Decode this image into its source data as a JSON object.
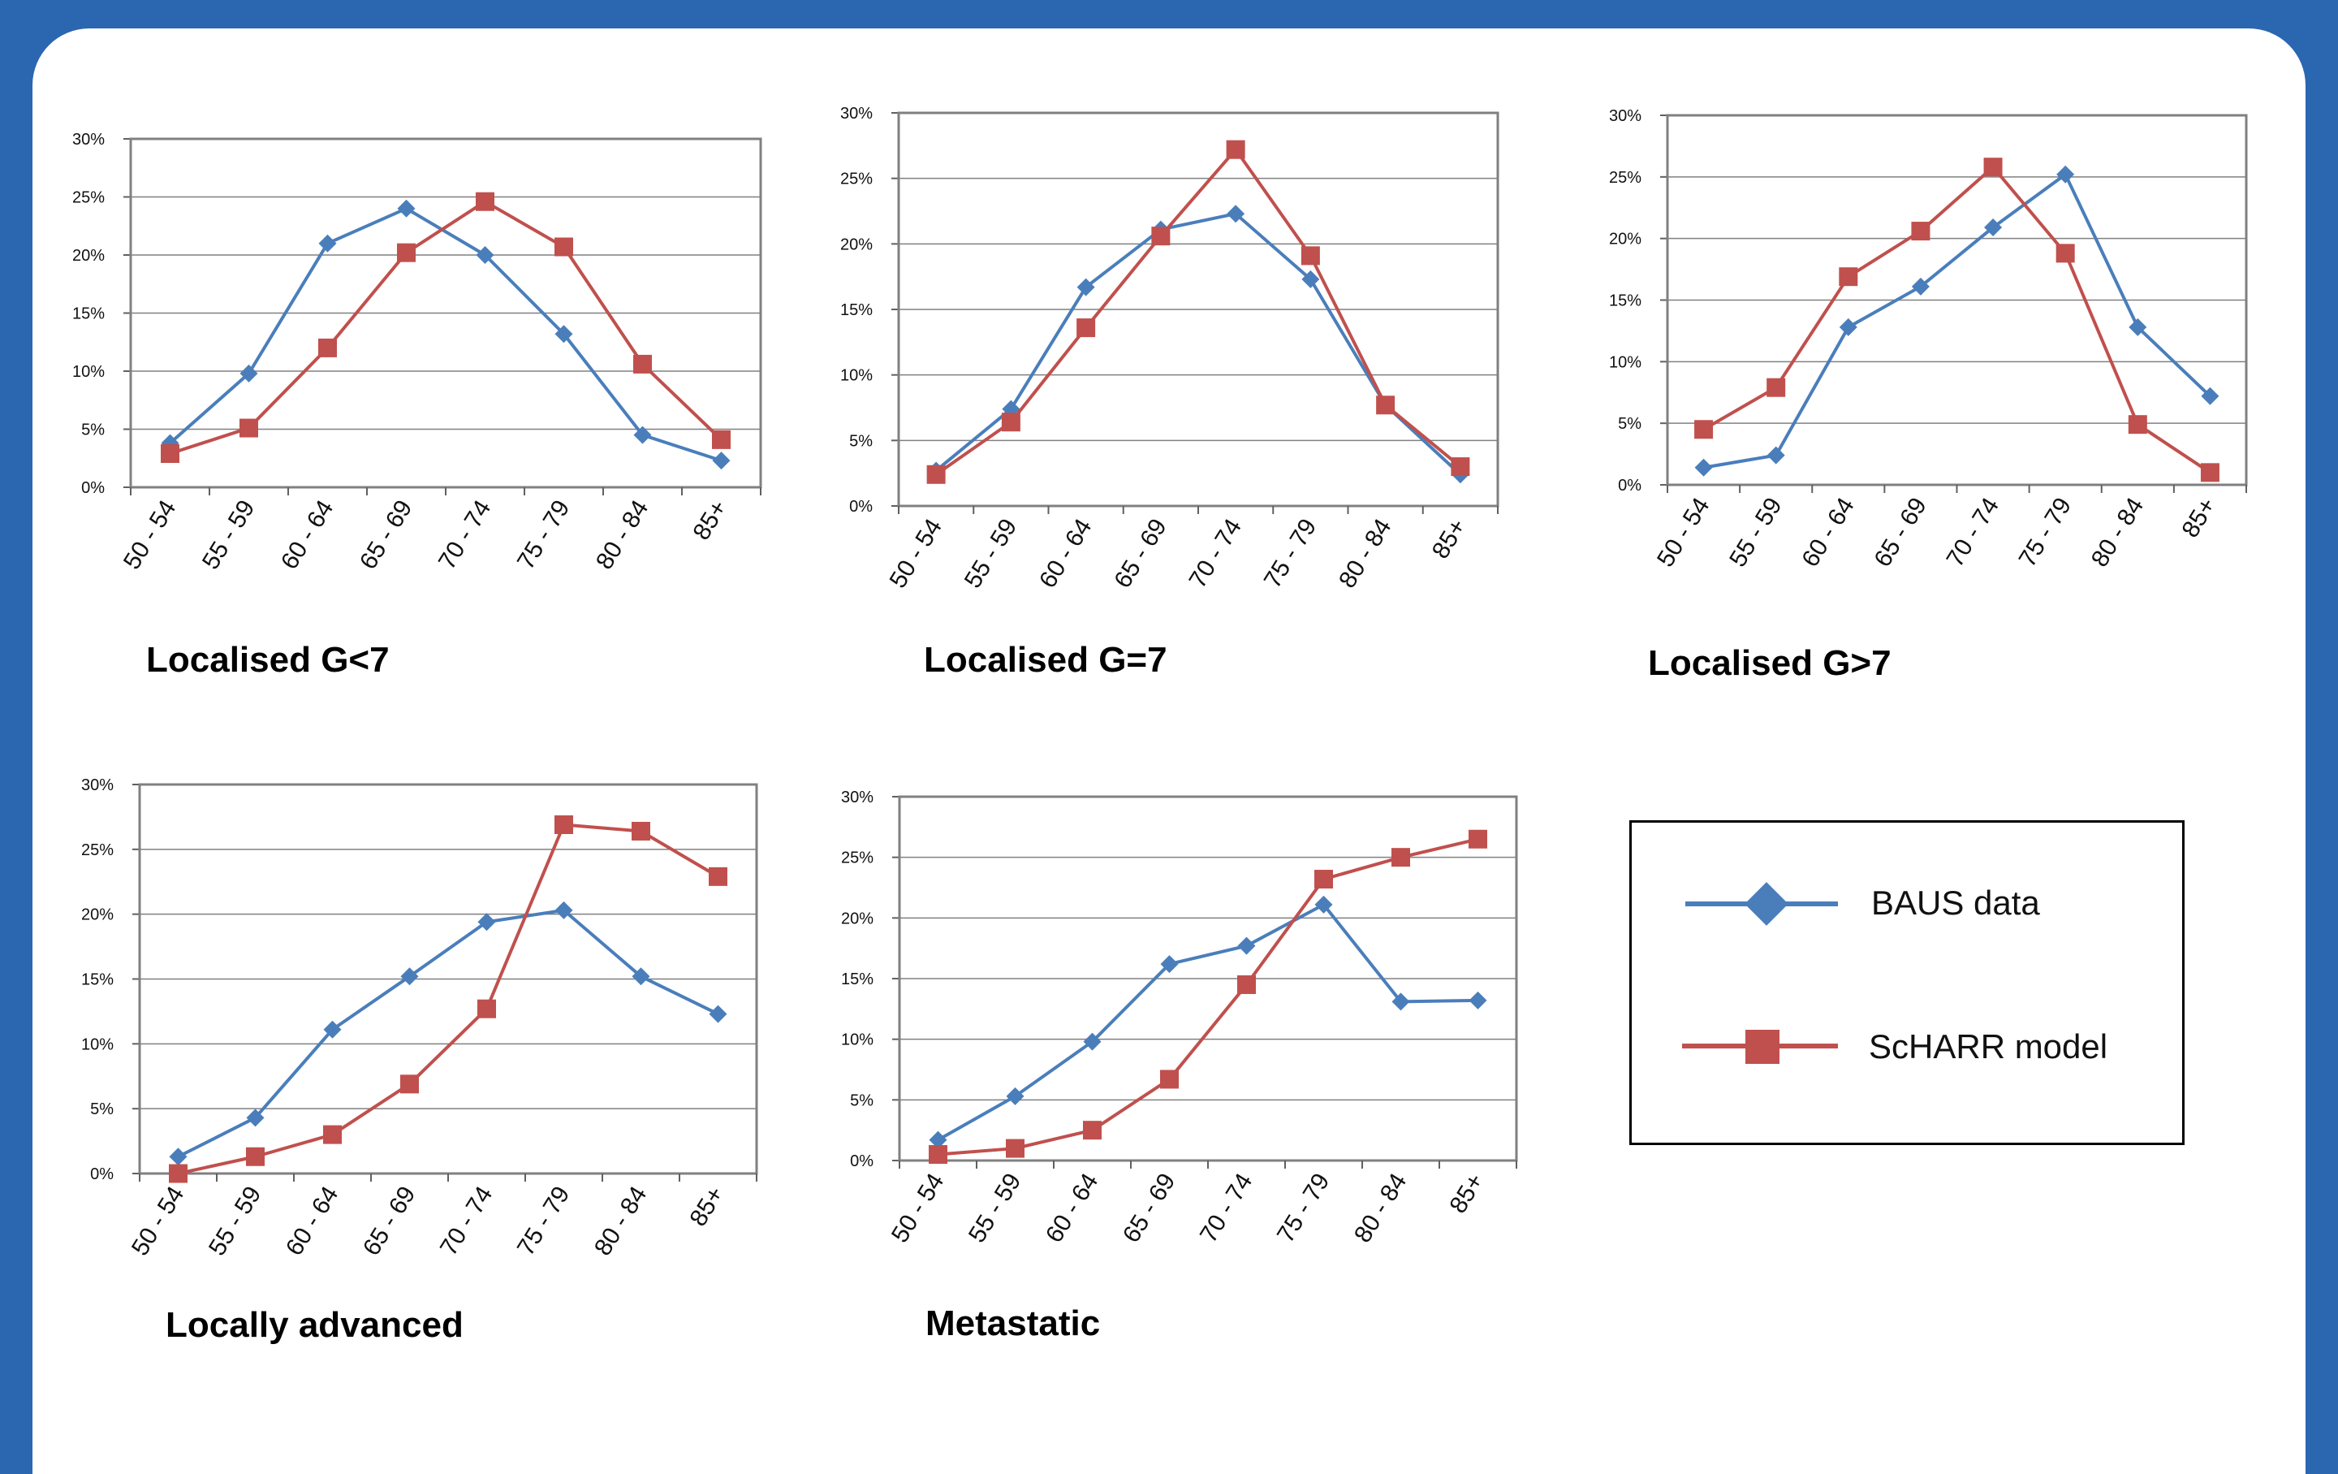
{
  "colors": {
    "baus": "#4a7ebb",
    "scharr": "#c0504d",
    "frame": "#2b66b1",
    "grid": "#808080"
  },
  "legend": {
    "items": [
      {
        "label": "BAUS data",
        "marker": "diamond",
        "color": "#4a7ebb"
      },
      {
        "label": "ScHARR model",
        "marker": "square",
        "color": "#c0504d"
      }
    ]
  },
  "chart_data": [
    {
      "type": "line",
      "title": "Localised G<7",
      "categories": [
        "50 - 54",
        "55 - 59",
        "60 - 64",
        "65 - 69",
        "70 - 74",
        "75 - 79",
        "80 - 84",
        "85+"
      ],
      "ylim": [
        0,
        30
      ],
      "ytick_labels": [
        "0%",
        "5%",
        "10%",
        "15%",
        "20%",
        "25%",
        "30%"
      ],
      "grid": true,
      "series": [
        {
          "name": "BAUS data",
          "values": [
            3.8,
            9.8,
            21.0,
            24.0,
            20.0,
            13.2,
            4.5,
            2.3
          ]
        },
        {
          "name": "ScHARR model",
          "values": [
            2.9,
            5.1,
            12.0,
            20.2,
            24.6,
            20.7,
            10.6,
            4.1
          ]
        }
      ]
    },
    {
      "type": "line",
      "title": "Localised G=7",
      "categories": [
        "50 - 54",
        "55 - 59",
        "60 - 64",
        "65 - 69",
        "70 - 74",
        "75 - 79",
        "80 - 84",
        "85+"
      ],
      "ylim": [
        0,
        30
      ],
      "ytick_labels": [
        "0%",
        "5%",
        "10%",
        "15%",
        "20%",
        "25%",
        "30%"
      ],
      "grid": true,
      "series": [
        {
          "name": "BAUS data",
          "values": [
            2.7,
            7.4,
            16.7,
            21.1,
            22.3,
            17.3,
            7.7,
            2.4
          ]
        },
        {
          "name": "ScHARR model",
          "values": [
            2.4,
            6.4,
            13.6,
            20.6,
            27.2,
            19.1,
            7.7,
            3.0
          ]
        }
      ]
    },
    {
      "type": "line",
      "title": "Localised G>7",
      "categories": [
        "50 - 54",
        "55 - 59",
        "60 - 64",
        "65 - 69",
        "70 - 74",
        "75 - 79",
        "80 - 84",
        "85+"
      ],
      "ylim": [
        0,
        30
      ],
      "ytick_labels": [
        "0%",
        "5%",
        "10%",
        "15%",
        "20%",
        "25%",
        "30%"
      ],
      "grid": true,
      "series": [
        {
          "name": "BAUS data",
          "values": [
            1.4,
            2.4,
            12.8,
            16.1,
            20.9,
            25.2,
            12.8,
            7.2
          ]
        },
        {
          "name": "ScHARR model",
          "values": [
            4.5,
            7.9,
            16.9,
            20.6,
            25.8,
            18.8,
            4.9,
            1.0
          ]
        }
      ]
    },
    {
      "type": "line",
      "title": "Locally advanced",
      "categories": [
        "50 - 54",
        "55 - 59",
        "60 - 64",
        "65 - 69",
        "70 - 74",
        "75 - 79",
        "80 - 84",
        "85+"
      ],
      "ylim": [
        0,
        30
      ],
      "ytick_labels": [
        "0%",
        "5%",
        "10%",
        "15%",
        "20%",
        "25%",
        "30%"
      ],
      "grid": true,
      "series": [
        {
          "name": "BAUS data",
          "values": [
            1.3,
            4.3,
            11.1,
            15.2,
            19.4,
            20.3,
            15.2,
            12.3
          ]
        },
        {
          "name": "ScHARR model",
          "values": [
            0.0,
            1.3,
            3.0,
            6.9,
            12.7,
            26.9,
            26.4,
            22.9
          ]
        }
      ]
    },
    {
      "type": "line",
      "title": "Metastatic",
      "categories": [
        "50 - 54",
        "55 - 59",
        "60 - 64",
        "65 - 69",
        "70 - 74",
        "75 - 79",
        "80 - 84",
        "85+"
      ],
      "ylim": [
        0,
        30
      ],
      "ytick_labels": [
        "0%",
        "5%",
        "10%",
        "15%",
        "20%",
        "25%",
        "30%"
      ],
      "grid": true,
      "series": [
        {
          "name": "BAUS data",
          "values": [
            1.7,
            5.3,
            9.8,
            16.2,
            17.7,
            21.1,
            13.1,
            13.2
          ]
        },
        {
          "name": "ScHARR model",
          "values": [
            0.5,
            1.0,
            2.5,
            6.7,
            14.5,
            23.2,
            25.0,
            26.5
          ]
        }
      ]
    }
  ]
}
